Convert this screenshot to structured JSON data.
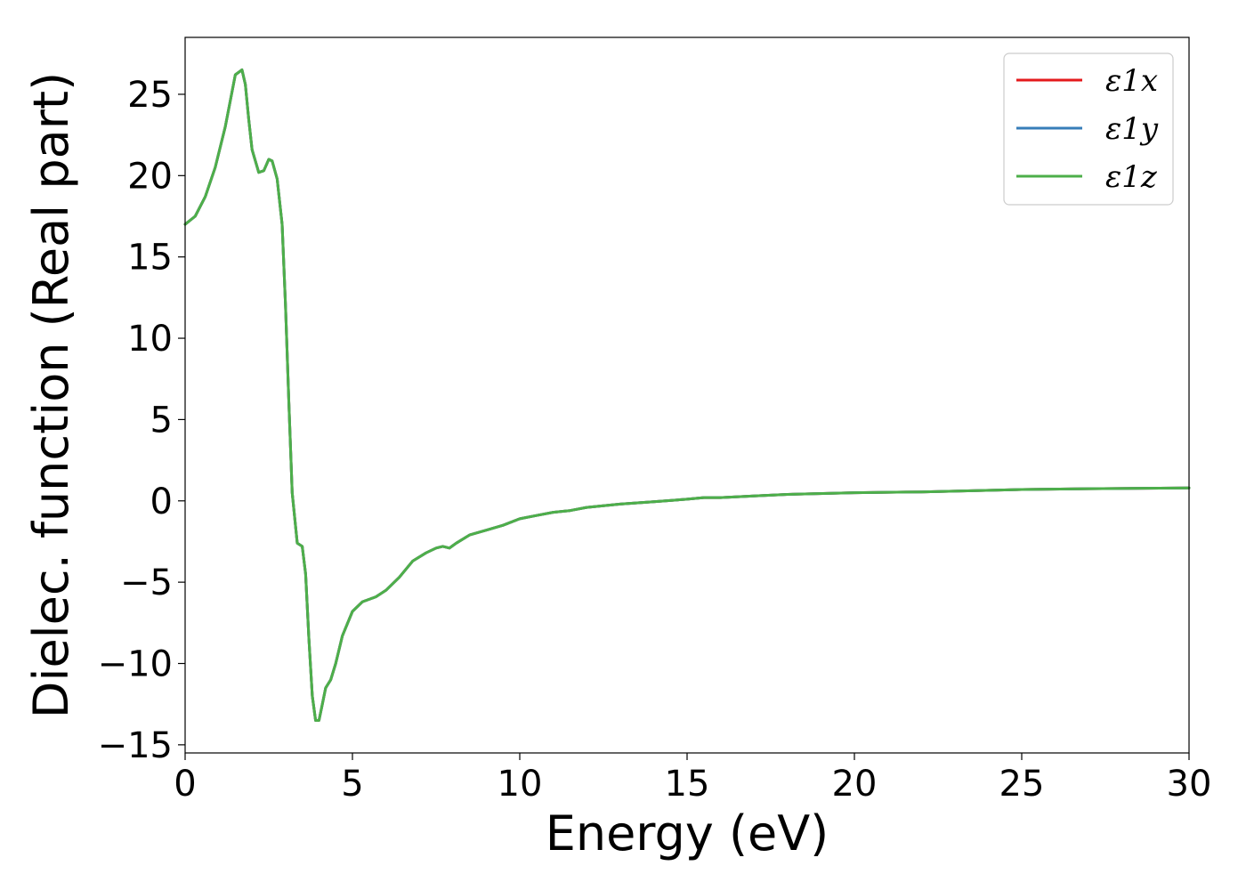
{
  "chart_data": {
    "type": "line",
    "title": "",
    "xlabel": "Energy (eV)",
    "ylabel": "Dielec. function (Real part)",
    "xlim": [
      0,
      30
    ],
    "ylim": [
      -15.5,
      28.5
    ],
    "xticks": [
      0,
      5,
      10,
      15,
      20,
      25,
      30
    ],
    "xtick_labels": [
      "0",
      "5",
      "10",
      "15",
      "20",
      "25",
      "30"
    ],
    "yticks": [
      -15,
      -10,
      -5,
      0,
      5,
      10,
      15,
      20,
      25
    ],
    "ytick_labels": [
      "−15",
      "−10",
      "−5",
      "0",
      "5",
      "10",
      "15",
      "20",
      "25"
    ],
    "grid": false,
    "legend_position": "top-right",
    "series": [
      {
        "name": "ε1x",
        "color": "#e41a1c",
        "x": [
          0,
          0.3,
          0.6,
          0.9,
          1.2,
          1.5,
          1.7,
          1.8,
          1.9,
          2.0,
          2.2,
          2.35,
          2.5,
          2.6,
          2.75,
          2.9,
          3.0,
          3.1,
          3.2,
          3.35,
          3.5,
          3.6,
          3.7,
          3.8,
          3.9,
          4.0,
          4.1,
          4.2,
          4.35,
          4.5,
          4.7,
          5.0,
          5.3,
          5.7,
          6.0,
          6.4,
          6.8,
          7.2,
          7.5,
          7.7,
          7.9,
          8.1,
          8.5,
          9.0,
          9.5,
          10.0,
          10.5,
          11.0,
          11.5,
          12.0,
          13.0,
          14.0,
          15.0,
          15.5,
          16.0,
          17.0,
          18.0,
          20.0,
          22.0,
          25.0,
          27.0,
          30.0
        ],
        "values": [
          17.0,
          17.5,
          18.7,
          20.5,
          23.0,
          26.2,
          26.5,
          25.6,
          23.5,
          21.6,
          20.2,
          20.3,
          21.0,
          20.9,
          19.8,
          17.0,
          12.0,
          6.0,
          0.5,
          -2.6,
          -2.8,
          -4.5,
          -8.5,
          -12.0,
          -13.5,
          -13.5,
          -12.5,
          -11.5,
          -11.0,
          -10.0,
          -8.3,
          -6.8,
          -6.2,
          -5.9,
          -5.5,
          -4.7,
          -3.7,
          -3.2,
          -2.9,
          -2.8,
          -2.9,
          -2.6,
          -2.1,
          -1.8,
          -1.5,
          -1.1,
          -0.9,
          -0.7,
          -0.6,
          -0.4,
          -0.2,
          -0.05,
          0.1,
          0.2,
          0.2,
          0.3,
          0.4,
          0.5,
          0.55,
          0.7,
          0.75,
          0.8
        ]
      },
      {
        "name": "ε1y",
        "color": "#377eb8",
        "x": [
          0,
          0.3,
          0.6,
          0.9,
          1.2,
          1.5,
          1.7,
          1.8,
          1.9,
          2.0,
          2.2,
          2.35,
          2.5,
          2.6,
          2.75,
          2.9,
          3.0,
          3.1,
          3.2,
          3.35,
          3.5,
          3.6,
          3.7,
          3.8,
          3.9,
          4.0,
          4.1,
          4.2,
          4.35,
          4.5,
          4.7,
          5.0,
          5.3,
          5.7,
          6.0,
          6.4,
          6.8,
          7.2,
          7.5,
          7.7,
          7.9,
          8.1,
          8.5,
          9.0,
          9.5,
          10.0,
          10.5,
          11.0,
          11.5,
          12.0,
          13.0,
          14.0,
          15.0,
          15.5,
          16.0,
          17.0,
          18.0,
          20.0,
          22.0,
          25.0,
          27.0,
          30.0
        ],
        "values": [
          17.0,
          17.5,
          18.7,
          20.5,
          23.0,
          26.2,
          26.5,
          25.6,
          23.5,
          21.6,
          20.2,
          20.3,
          21.0,
          20.9,
          19.8,
          17.0,
          12.0,
          6.0,
          0.5,
          -2.6,
          -2.8,
          -4.5,
          -8.5,
          -12.0,
          -13.5,
          -13.5,
          -12.5,
          -11.5,
          -11.0,
          -10.0,
          -8.3,
          -6.8,
          -6.2,
          -5.9,
          -5.5,
          -4.7,
          -3.7,
          -3.2,
          -2.9,
          -2.8,
          -2.9,
          -2.6,
          -2.1,
          -1.8,
          -1.5,
          -1.1,
          -0.9,
          -0.7,
          -0.6,
          -0.4,
          -0.2,
          -0.05,
          0.1,
          0.2,
          0.2,
          0.3,
          0.4,
          0.5,
          0.55,
          0.7,
          0.75,
          0.8
        ]
      },
      {
        "name": "ε1z",
        "color": "#4daf4a",
        "x": [
          0,
          0.3,
          0.6,
          0.9,
          1.2,
          1.5,
          1.7,
          1.8,
          1.9,
          2.0,
          2.2,
          2.35,
          2.5,
          2.6,
          2.75,
          2.9,
          3.0,
          3.1,
          3.2,
          3.35,
          3.5,
          3.6,
          3.7,
          3.8,
          3.9,
          4.0,
          4.1,
          4.2,
          4.35,
          4.5,
          4.7,
          5.0,
          5.3,
          5.7,
          6.0,
          6.4,
          6.8,
          7.2,
          7.5,
          7.7,
          7.9,
          8.1,
          8.5,
          9.0,
          9.5,
          10.0,
          10.5,
          11.0,
          11.5,
          12.0,
          13.0,
          14.0,
          15.0,
          15.5,
          16.0,
          17.0,
          18.0,
          20.0,
          22.0,
          25.0,
          27.0,
          30.0
        ],
        "values": [
          17.0,
          17.5,
          18.7,
          20.5,
          23.0,
          26.2,
          26.5,
          25.6,
          23.5,
          21.6,
          20.2,
          20.3,
          21.0,
          20.9,
          19.8,
          17.0,
          12.0,
          6.0,
          0.5,
          -2.6,
          -2.8,
          -4.5,
          -8.5,
          -12.0,
          -13.5,
          -13.5,
          -12.5,
          -11.5,
          -11.0,
          -10.0,
          -8.3,
          -6.8,
          -6.2,
          -5.9,
          -5.5,
          -4.7,
          -3.7,
          -3.2,
          -2.9,
          -2.8,
          -2.9,
          -2.6,
          -2.1,
          -1.8,
          -1.5,
          -1.1,
          -0.9,
          -0.7,
          -0.6,
          -0.4,
          -0.2,
          -0.05,
          0.1,
          0.2,
          0.2,
          0.3,
          0.4,
          0.5,
          0.55,
          0.7,
          0.75,
          0.8
        ]
      }
    ]
  }
}
